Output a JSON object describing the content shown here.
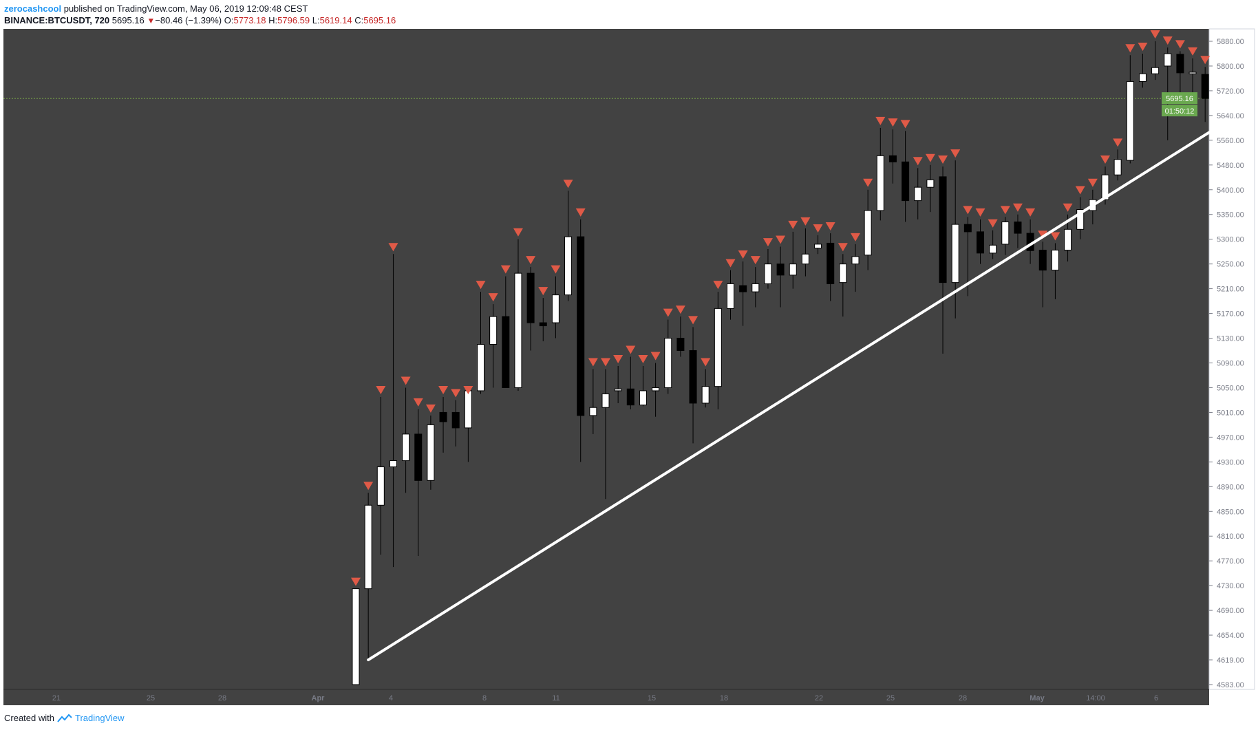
{
  "header": {
    "author": "zerocashcool",
    "published_text": "published on TradingView.com, May 06, 2019 12:09:48 CEST",
    "symbol": "BINANCE:BTCUSDT, 720",
    "last": "5695.16",
    "change": "−80.46 (−1.39%)",
    "open_label": "O:",
    "open": "5773.18",
    "high_label": "H:",
    "high": "5796.59",
    "low_label": "L:",
    "low": "5619.14",
    "close_label": "C:",
    "close": "5695.16"
  },
  "footer": {
    "created_with": "Created with",
    "brand": "TradingView"
  },
  "colors": {
    "plot_bg": "#424242",
    "candle_up": "#ffffff",
    "candle_down": "#000000",
    "arrow_marker": "#e05a47",
    "trendline": "#ffffff",
    "price_line": "#8bc34a",
    "price_badge": "#6aa84f"
  },
  "chart_data": {
    "type": "candlestick",
    "symbol": "BINANCE:BTCUSDT",
    "timeframe": "720",
    "y_axis_ticks": [
      "5880.00",
      "5800.00",
      "5720.00",
      "5640.00",
      "5560.00",
      "5480.00",
      "5400.00",
      "5350.00",
      "5300.00",
      "5250.00",
      "5210.00",
      "5170.00",
      "5130.00",
      "5090.00",
      "5050.00",
      "5010.00",
      "4970.00",
      "4930.00",
      "4890.00",
      "4850.00",
      "4810.00",
      "4770.00",
      "4730.00",
      "4690.00",
      "4654.00",
      "4619.00",
      "4583.00"
    ],
    "x_axis_labels": [
      "21",
      "25",
      "28",
      "Apr",
      "4",
      "8",
      "11",
      "15",
      "18",
      "22",
      "25",
      "28",
      "May",
      "14:00",
      "6"
    ],
    "current_price": "5695.16",
    "countdown": "01:50:12",
    "trendline": {
      "start": {
        "bar": 1,
        "price": 4619
      },
      "end": {
        "bar": 70,
        "price": 5628
      }
    },
    "markers": "down-arrow above each candle",
    "candles": [
      {
        "o": 4583,
        "h": 4725,
        "l": 4583,
        "c": 4725
      },
      {
        "o": 4725,
        "h": 4880,
        "l": 4619,
        "c": 4860
      },
      {
        "o": 4860,
        "h": 5035,
        "l": 4780,
        "c": 4922
      },
      {
        "o": 4922,
        "h": 5270,
        "l": 4760,
        "c": 4932
      },
      {
        "o": 4932,
        "h": 5050,
        "l": 4880,
        "c": 4975
      },
      {
        "o": 4975,
        "h": 5015,
        "l": 4778,
        "c": 4900
      },
      {
        "o": 4900,
        "h": 5005,
        "l": 4885,
        "c": 4990
      },
      {
        "o": 5010,
        "h": 5035,
        "l": 4945,
        "c": 4995
      },
      {
        "o": 5010,
        "h": 5030,
        "l": 4955,
        "c": 4985
      },
      {
        "o": 4985,
        "h": 5035,
        "l": 4930,
        "c": 5045
      },
      {
        "o": 5045,
        "h": 5205,
        "l": 5040,
        "c": 5120
      },
      {
        "o": 5120,
        "h": 5185,
        "l": 5050,
        "c": 5165
      },
      {
        "o": 5165,
        "h": 5230,
        "l": 5050,
        "c": 5050
      },
      {
        "o": 5050,
        "h": 5300,
        "l": 5045,
        "c": 5235
      },
      {
        "o": 5235,
        "h": 5245,
        "l": 5110,
        "c": 5155
      },
      {
        "o": 5155,
        "h": 5195,
        "l": 5125,
        "c": 5150
      },
      {
        "o": 5155,
        "h": 5230,
        "l": 5130,
        "c": 5200
      },
      {
        "o": 5200,
        "h": 5398,
        "l": 5190,
        "c": 5305
      },
      {
        "o": 5305,
        "h": 5340,
        "l": 4930,
        "c": 5005
      },
      {
        "o": 5005,
        "h": 5080,
        "l": 4975,
        "c": 5018
      },
      {
        "o": 5018,
        "h": 5080,
        "l": 4870,
        "c": 5040
      },
      {
        "o": 5045,
        "h": 5085,
        "l": 5025,
        "c": 5048
      },
      {
        "o": 5048,
        "h": 5100,
        "l": 5015,
        "c": 5022
      },
      {
        "o": 5022,
        "h": 5085,
        "l": 5020,
        "c": 5045
      },
      {
        "o": 5045,
        "h": 5090,
        "l": 5003,
        "c": 5050
      },
      {
        "o": 5050,
        "h": 5160,
        "l": 5040,
        "c": 5130
      },
      {
        "o": 5130,
        "h": 5165,
        "l": 5100,
        "c": 5110
      },
      {
        "o": 5110,
        "h": 5148,
        "l": 4960,
        "c": 5025
      },
      {
        "o": 5025,
        "h": 5080,
        "l": 5018,
        "c": 5052
      },
      {
        "o": 5052,
        "h": 5205,
        "l": 5015,
        "c": 5178
      },
      {
        "o": 5178,
        "h": 5240,
        "l": 5160,
        "c": 5218
      },
      {
        "o": 5215,
        "h": 5255,
        "l": 5150,
        "c": 5205
      },
      {
        "o": 5205,
        "h": 5245,
        "l": 5180,
        "c": 5218
      },
      {
        "o": 5218,
        "h": 5280,
        "l": 5210,
        "c": 5250
      },
      {
        "o": 5250,
        "h": 5285,
        "l": 5180,
        "c": 5232
      },
      {
        "o": 5232,
        "h": 5315,
        "l": 5210,
        "c": 5250
      },
      {
        "o": 5250,
        "h": 5322,
        "l": 5230,
        "c": 5270
      },
      {
        "o": 5282,
        "h": 5308,
        "l": 5270,
        "c": 5290
      },
      {
        "o": 5292,
        "h": 5312,
        "l": 5190,
        "c": 5218
      },
      {
        "o": 5220,
        "h": 5270,
        "l": 5165,
        "c": 5250
      },
      {
        "o": 5250,
        "h": 5290,
        "l": 5205,
        "c": 5265
      },
      {
        "o": 5268,
        "h": 5400,
        "l": 5240,
        "c": 5358
      },
      {
        "o": 5358,
        "h": 5600,
        "l": 5338,
        "c": 5510
      },
      {
        "o": 5510,
        "h": 5595,
        "l": 5420,
        "c": 5490
      },
      {
        "o": 5490,
        "h": 5590,
        "l": 5335,
        "c": 5378
      },
      {
        "o": 5378,
        "h": 5470,
        "l": 5340,
        "c": 5408
      },
      {
        "o": 5408,
        "h": 5480,
        "l": 5355,
        "c": 5432
      },
      {
        "o": 5442,
        "h": 5475,
        "l": 5105,
        "c": 5220
      },
      {
        "o": 5220,
        "h": 5495,
        "l": 5162,
        "c": 5330
      },
      {
        "o": 5330,
        "h": 5345,
        "l": 5198,
        "c": 5315
      },
      {
        "o": 5315,
        "h": 5340,
        "l": 5250,
        "c": 5272
      },
      {
        "o": 5272,
        "h": 5318,
        "l": 5260,
        "c": 5288
      },
      {
        "o": 5290,
        "h": 5345,
        "l": 5268,
        "c": 5335
      },
      {
        "o": 5335,
        "h": 5350,
        "l": 5282,
        "c": 5312
      },
      {
        "o": 5312,
        "h": 5340,
        "l": 5250,
        "c": 5277
      },
      {
        "o": 5278,
        "h": 5295,
        "l": 5180,
        "c": 5240
      },
      {
        "o": 5240,
        "h": 5292,
        "l": 5193,
        "c": 5278
      },
      {
        "o": 5278,
        "h": 5350,
        "l": 5255,
        "c": 5320
      },
      {
        "o": 5320,
        "h": 5385,
        "l": 5300,
        "c": 5360
      },
      {
        "o": 5358,
        "h": 5400,
        "l": 5330,
        "c": 5380
      },
      {
        "o": 5380,
        "h": 5475,
        "l": 5370,
        "c": 5448
      },
      {
        "o": 5448,
        "h": 5530,
        "l": 5430,
        "c": 5498
      },
      {
        "o": 5495,
        "h": 5835,
        "l": 5485,
        "c": 5750
      },
      {
        "o": 5750,
        "h": 5840,
        "l": 5730,
        "c": 5775
      },
      {
        "o": 5775,
        "h": 5880,
        "l": 5755,
        "c": 5795
      },
      {
        "o": 5800,
        "h": 5860,
        "l": 5560,
        "c": 5840
      },
      {
        "o": 5838,
        "h": 5848,
        "l": 5700,
        "c": 5778
      },
      {
        "o": 5775,
        "h": 5825,
        "l": 5700,
        "c": 5780
      },
      {
        "o": 5773,
        "h": 5797,
        "l": 5619,
        "c": 5695
      }
    ]
  }
}
